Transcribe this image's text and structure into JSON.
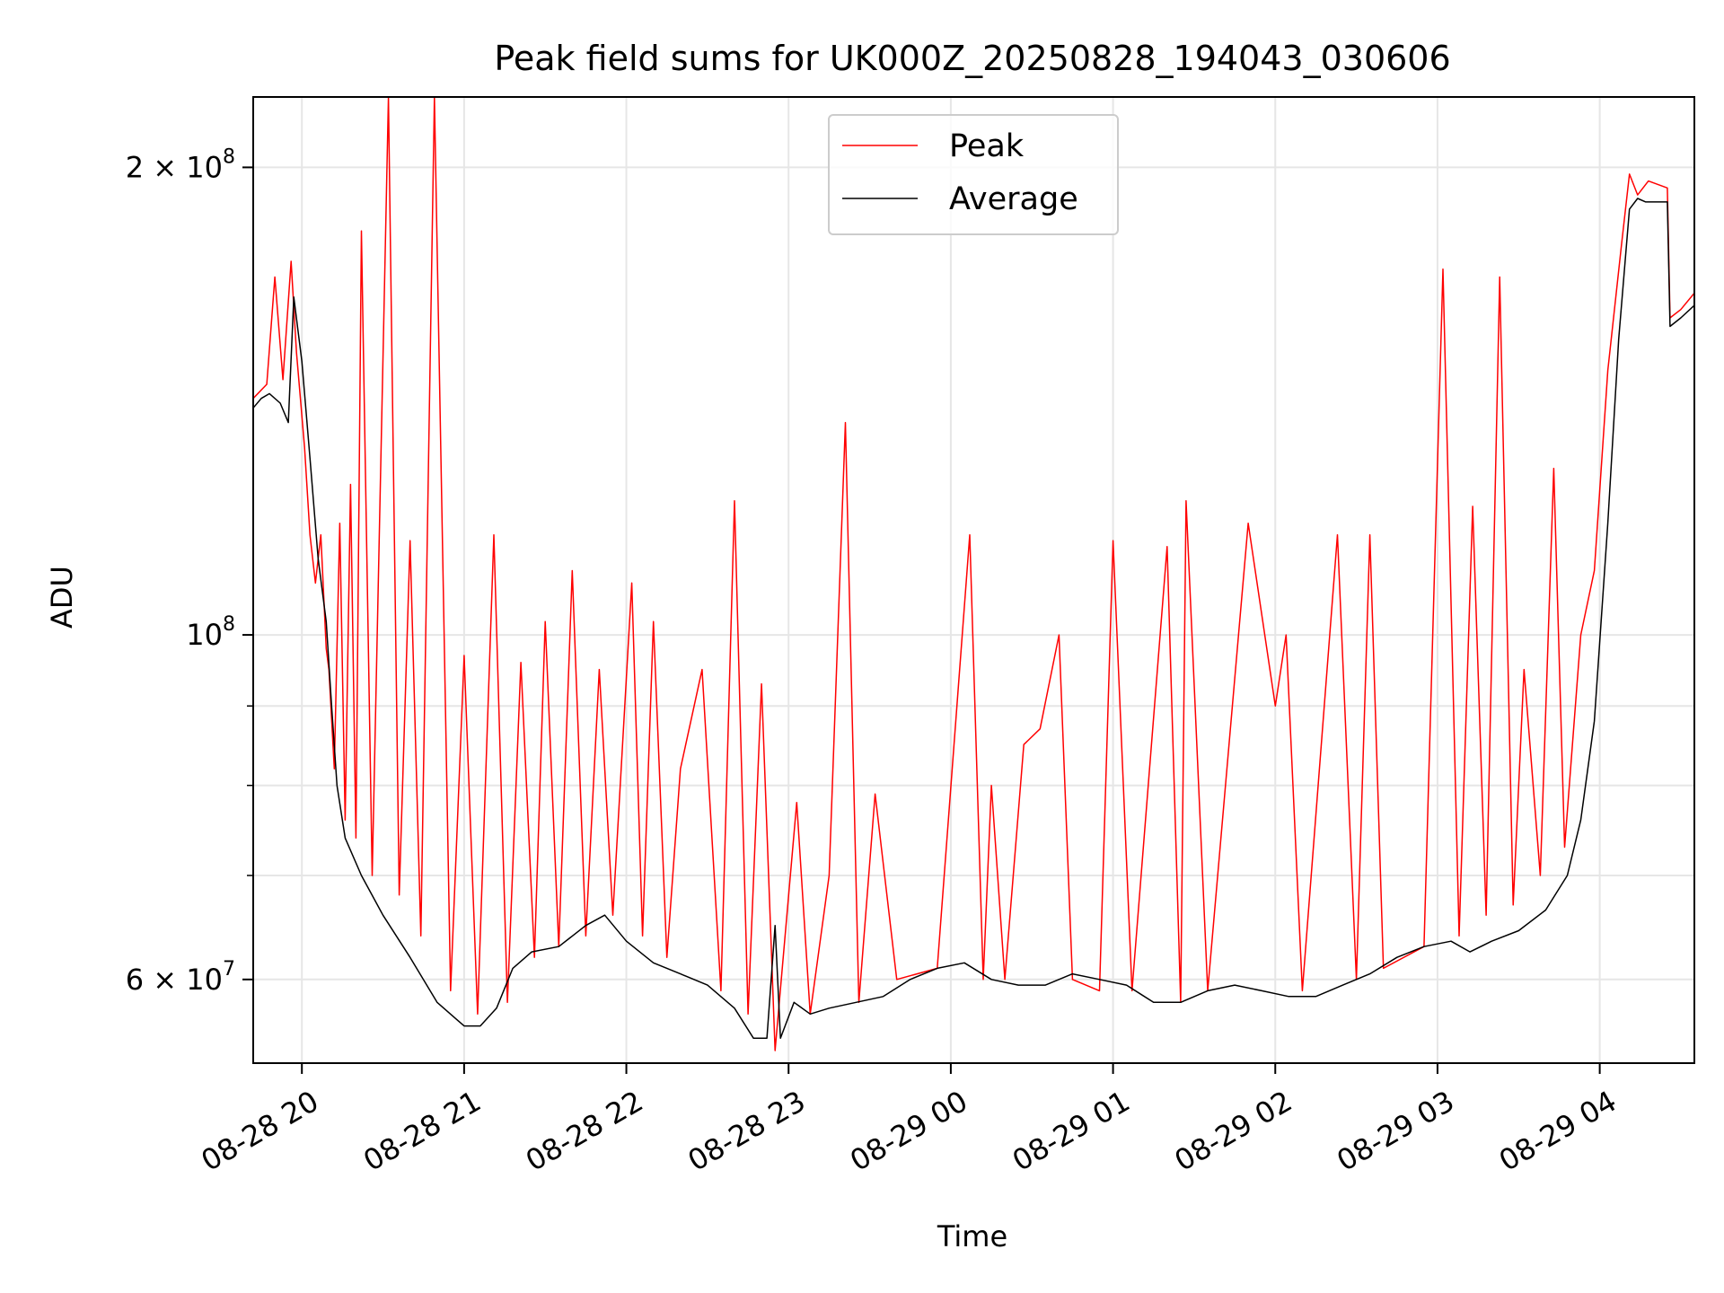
{
  "chart_data": {
    "type": "line",
    "title": "Peak field sums for UK000Z_20250828_194043_030606",
    "xlabel": "Time",
    "ylabel": "ADU",
    "x_range": [
      "2025-08-28 19:42",
      "2025-08-29 04:35"
    ],
    "y_range": [
      53000000,
      222000000
    ],
    "y_scale": "log",
    "grid": true,
    "legend_position": "upper center",
    "x_ticks": [
      {
        "t": "2025-08-28 20:00",
        "label": "08-28 20"
      },
      {
        "t": "2025-08-28 21:00",
        "label": "08-28 21"
      },
      {
        "t": "2025-08-28 22:00",
        "label": "08-28 22"
      },
      {
        "t": "2025-08-28 23:00",
        "label": "08-28 23"
      },
      {
        "t": "2025-08-29 00:00",
        "label": "08-29 00"
      },
      {
        "t": "2025-08-29 01:00",
        "label": "08-29 01"
      },
      {
        "t": "2025-08-29 02:00",
        "label": "08-29 02"
      },
      {
        "t": "2025-08-29 03:00",
        "label": "08-29 03"
      },
      {
        "t": "2025-08-29 04:00",
        "label": "08-29 04"
      }
    ],
    "y_major_ticks": [
      {
        "value": 60000000,
        "base": "6 × 10",
        "exp": "7"
      },
      {
        "value": 100000000,
        "base": "10",
        "exp": "8"
      },
      {
        "value": 200000000,
        "base": "2 × 10",
        "exp": "8"
      }
    ],
    "y_minor_gridlines": [
      70000000,
      80000000,
      90000000
    ],
    "series": [
      {
        "name": "Peak",
        "color": "#ff0000",
        "points": [
          [
            "2025-08-28 19:42",
            142000000
          ],
          [
            "2025-08-28 19:47",
            145000000
          ],
          [
            "2025-08-28 19:50",
            170000000
          ],
          [
            "2025-08-28 19:53",
            146000000
          ],
          [
            "2025-08-28 19:56",
            174000000
          ],
          [
            "2025-08-28 19:58",
            152000000
          ],
          [
            "2025-08-28 20:01",
            132000000
          ],
          [
            "2025-08-28 20:03",
            116000000
          ],
          [
            "2025-08-28 20:05",
            108000000
          ],
          [
            "2025-08-28 20:07",
            116000000
          ],
          [
            "2025-08-28 20:09",
            98000000
          ],
          [
            "2025-08-28 20:10",
            95000000
          ],
          [
            "2025-08-28 20:12",
            82000000
          ],
          [
            "2025-08-28 20:14",
            118000000
          ],
          [
            "2025-08-28 20:16",
            76000000
          ],
          [
            "2025-08-28 20:18",
            125000000
          ],
          [
            "2025-08-28 20:20",
            74000000
          ],
          [
            "2025-08-28 20:22",
            182000000
          ],
          [
            "2025-08-28 20:26",
            70000000
          ],
          [
            "2025-08-28 20:32",
            222000000
          ],
          [
            "2025-08-28 20:36",
            68000000
          ],
          [
            "2025-08-28 20:40",
            115000000
          ],
          [
            "2025-08-28 20:44",
            64000000
          ],
          [
            "2025-08-28 20:49",
            222000000
          ],
          [
            "2025-08-28 20:55",
            59000000
          ],
          [
            "2025-08-28 21:00",
            97000000
          ],
          [
            "2025-08-28 21:05",
            57000000
          ],
          [
            "2025-08-28 21:11",
            116000000
          ],
          [
            "2025-08-28 21:16",
            58000000
          ],
          [
            "2025-08-28 21:21",
            96000000
          ],
          [
            "2025-08-28 21:26",
            62000000
          ],
          [
            "2025-08-28 21:30",
            102000000
          ],
          [
            "2025-08-28 21:35",
            63000000
          ],
          [
            "2025-08-28 21:40",
            110000000
          ],
          [
            "2025-08-28 21:45",
            64000000
          ],
          [
            "2025-08-28 21:50",
            95000000
          ],
          [
            "2025-08-28 21:55",
            66000000
          ],
          [
            "2025-08-28 22:02",
            108000000
          ],
          [
            "2025-08-28 22:06",
            64000000
          ],
          [
            "2025-08-28 22:10",
            102000000
          ],
          [
            "2025-08-28 22:15",
            62000000
          ],
          [
            "2025-08-28 22:20",
            82000000
          ],
          [
            "2025-08-28 22:28",
            95000000
          ],
          [
            "2025-08-28 22:35",
            59000000
          ],
          [
            "2025-08-28 22:40",
            122000000
          ],
          [
            "2025-08-28 22:45",
            57000000
          ],
          [
            "2025-08-28 22:50",
            93000000
          ],
          [
            "2025-08-28 22:55",
            54000000
          ],
          [
            "2025-08-28 23:03",
            78000000
          ],
          [
            "2025-08-28 23:08",
            57000000
          ],
          [
            "2025-08-28 23:15",
            70000000
          ],
          [
            "2025-08-28 23:21",
            137000000
          ],
          [
            "2025-08-28 23:26",
            58000000
          ],
          [
            "2025-08-28 23:32",
            79000000
          ],
          [
            "2025-08-28 23:40",
            60000000
          ],
          [
            "2025-08-28 23:55",
            61000000
          ],
          [
            "2025-08-29 00:07",
            116000000
          ],
          [
            "2025-08-29 00:12",
            60000000
          ],
          [
            "2025-08-29 00:15",
            80000000
          ],
          [
            "2025-08-29 00:20",
            60000000
          ],
          [
            "2025-08-29 00:27",
            85000000
          ],
          [
            "2025-08-29 00:33",
            87000000
          ],
          [
            "2025-08-29 00:40",
            100000000
          ],
          [
            "2025-08-29 00:45",
            60000000
          ],
          [
            "2025-08-29 00:55",
            59000000
          ],
          [
            "2025-08-29 01:00",
            115000000
          ],
          [
            "2025-08-29 01:07",
            59000000
          ],
          [
            "2025-08-29 01:20",
            114000000
          ],
          [
            "2025-08-29 01:25",
            58000000
          ],
          [
            "2025-08-29 01:27",
            122000000
          ],
          [
            "2025-08-29 01:35",
            59000000
          ],
          [
            "2025-08-29 01:50",
            118000000
          ],
          [
            "2025-08-29 02:00",
            90000000
          ],
          [
            "2025-08-29 02:04",
            100000000
          ],
          [
            "2025-08-29 02:10",
            59000000
          ],
          [
            "2025-08-29 02:23",
            116000000
          ],
          [
            "2025-08-29 02:30",
            60000000
          ],
          [
            "2025-08-29 02:35",
            116000000
          ],
          [
            "2025-08-29 02:40",
            61000000
          ],
          [
            "2025-08-29 02:55",
            63000000
          ],
          [
            "2025-08-29 03:02",
            172000000
          ],
          [
            "2025-08-29 03:08",
            64000000
          ],
          [
            "2025-08-29 03:13",
            121000000
          ],
          [
            "2025-08-29 03:18",
            66000000
          ],
          [
            "2025-08-29 03:23",
            170000000
          ],
          [
            "2025-08-29 03:28",
            67000000
          ],
          [
            "2025-08-29 03:32",
            95000000
          ],
          [
            "2025-08-29 03:38",
            70000000
          ],
          [
            "2025-08-29 03:43",
            128000000
          ],
          [
            "2025-08-29 03:47",
            73000000
          ],
          [
            "2025-08-29 03:53",
            100000000
          ],
          [
            "2025-08-29 03:58",
            110000000
          ],
          [
            "2025-08-29 04:03",
            148000000
          ],
          [
            "2025-08-29 04:08",
            178000000
          ],
          [
            "2025-08-29 04:11",
            198000000
          ],
          [
            "2025-08-29 04:14",
            192000000
          ],
          [
            "2025-08-29 04:18",
            196000000
          ],
          [
            "2025-08-29 04:25",
            194000000
          ],
          [
            "2025-08-29 04:26",
            160000000
          ],
          [
            "2025-08-29 04:30",
            162000000
          ],
          [
            "2025-08-29 04:35",
            166000000
          ]
        ]
      },
      {
        "name": "Average",
        "color": "#000000",
        "points": [
          [
            "2025-08-28 19:42",
            140000000
          ],
          [
            "2025-08-28 19:45",
            142000000
          ],
          [
            "2025-08-28 19:48",
            143000000
          ],
          [
            "2025-08-28 19:52",
            141000000
          ],
          [
            "2025-08-28 19:55",
            137000000
          ],
          [
            "2025-08-28 19:57",
            165000000
          ],
          [
            "2025-08-28 20:00",
            150000000
          ],
          [
            "2025-08-28 20:03",
            130000000
          ],
          [
            "2025-08-28 20:06",
            112000000
          ],
          [
            "2025-08-28 20:09",
            102000000
          ],
          [
            "2025-08-28 20:11",
            90000000
          ],
          [
            "2025-08-28 20:13",
            80000000
          ],
          [
            "2025-08-28 20:16",
            74000000
          ],
          [
            "2025-08-28 20:22",
            70000000
          ],
          [
            "2025-08-28 20:30",
            66000000
          ],
          [
            "2025-08-28 20:40",
            62000000
          ],
          [
            "2025-08-28 20:50",
            58000000
          ],
          [
            "2025-08-28 21:00",
            56000000
          ],
          [
            "2025-08-28 21:06",
            56000000
          ],
          [
            "2025-08-28 21:12",
            57500000
          ],
          [
            "2025-08-28 21:18",
            61000000
          ],
          [
            "2025-08-28 21:25",
            62500000
          ],
          [
            "2025-08-28 21:35",
            63000000
          ],
          [
            "2025-08-28 21:45",
            65000000
          ],
          [
            "2025-08-28 21:52",
            66000000
          ],
          [
            "2025-08-28 22:00",
            63500000
          ],
          [
            "2025-08-28 22:10",
            61500000
          ],
          [
            "2025-08-28 22:20",
            60500000
          ],
          [
            "2025-08-28 22:30",
            59500000
          ],
          [
            "2025-08-28 22:40",
            57500000
          ],
          [
            "2025-08-28 22:47",
            55000000
          ],
          [
            "2025-08-28 22:52",
            55000000
          ],
          [
            "2025-08-28 22:55",
            65000000
          ],
          [
            "2025-08-28 22:57",
            55000000
          ],
          [
            "2025-08-28 23:02",
            58000000
          ],
          [
            "2025-08-28 23:08",
            57000000
          ],
          [
            "2025-08-28 23:15",
            57500000
          ],
          [
            "2025-08-28 23:25",
            58000000
          ],
          [
            "2025-08-28 23:35",
            58500000
          ],
          [
            "2025-08-28 23:45",
            60000000
          ],
          [
            "2025-08-28 23:55",
            61000000
          ],
          [
            "2025-08-29 00:05",
            61500000
          ],
          [
            "2025-08-29 00:15",
            60000000
          ],
          [
            "2025-08-29 00:25",
            59500000
          ],
          [
            "2025-08-29 00:35",
            59500000
          ],
          [
            "2025-08-29 00:45",
            60500000
          ],
          [
            "2025-08-29 00:55",
            60000000
          ],
          [
            "2025-08-29 01:05",
            59500000
          ],
          [
            "2025-08-29 01:15",
            58000000
          ],
          [
            "2025-08-29 01:25",
            58000000
          ],
          [
            "2025-08-29 01:35",
            59000000
          ],
          [
            "2025-08-29 01:45",
            59500000
          ],
          [
            "2025-08-29 01:55",
            59000000
          ],
          [
            "2025-08-29 02:05",
            58500000
          ],
          [
            "2025-08-29 02:15",
            58500000
          ],
          [
            "2025-08-29 02:25",
            59500000
          ],
          [
            "2025-08-29 02:35",
            60500000
          ],
          [
            "2025-08-29 02:45",
            62000000
          ],
          [
            "2025-08-29 02:55",
            63000000
          ],
          [
            "2025-08-29 03:05",
            63500000
          ],
          [
            "2025-08-29 03:12",
            62500000
          ],
          [
            "2025-08-29 03:20",
            63500000
          ],
          [
            "2025-08-29 03:30",
            64500000
          ],
          [
            "2025-08-29 03:40",
            66500000
          ],
          [
            "2025-08-29 03:48",
            70000000
          ],
          [
            "2025-08-29 03:53",
            76000000
          ],
          [
            "2025-08-29 03:58",
            88000000
          ],
          [
            "2025-08-29 04:03",
            118000000
          ],
          [
            "2025-08-29 04:07",
            155000000
          ],
          [
            "2025-08-29 04:11",
            188000000
          ],
          [
            "2025-08-29 04:14",
            191000000
          ],
          [
            "2025-08-29 04:17",
            190000000
          ],
          [
            "2025-08-29 04:25",
            190000000
          ],
          [
            "2025-08-29 04:26",
            158000000
          ],
          [
            "2025-08-29 04:30",
            160000000
          ],
          [
            "2025-08-29 04:35",
            163000000
          ]
        ]
      }
    ]
  }
}
